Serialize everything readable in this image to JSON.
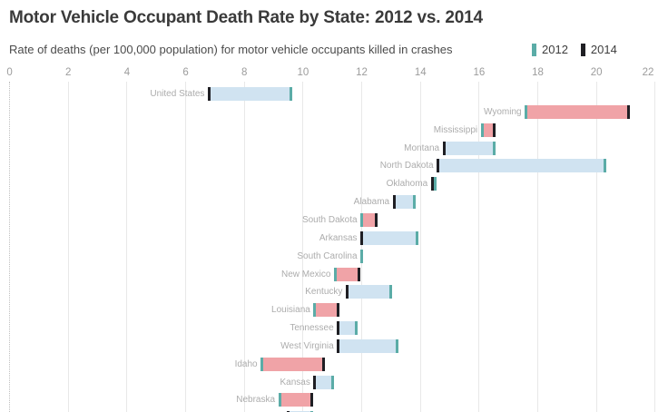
{
  "header": {
    "title": "Motor Vehicle Occupant Death Rate by State: 2012 vs. 2014",
    "subtitle": "Rate of deaths (per 100,000 population) for motor vehicle occupants killed in crashes"
  },
  "legend": {
    "items": [
      {
        "label": "2012",
        "color": "#5baca7"
      },
      {
        "label": "2014",
        "color": "#1f1f24"
      }
    ]
  },
  "chart_data": {
    "type": "bar",
    "subtype": "horizontal-range-dumbbell",
    "title": "Motor Vehicle Occupant Death Rate by State: 2012 vs. 2014",
    "subtitle": "Rate of deaths (per 100,000 population) for motor vehicle occupants killed in crashes",
    "xlabel": "",
    "ylabel": "",
    "x_axis": {
      "min": 0,
      "max": 22,
      "tick_step": 2,
      "ticks": [
        0,
        2,
        4,
        6,
        8,
        10,
        12,
        14,
        16,
        18,
        20,
        22
      ],
      "grid": true,
      "zero_line_style": "dotted"
    },
    "series_names": [
      "2012",
      "2014"
    ],
    "legend_position": "top-right",
    "colors": {
      "increase_fill": "#f0a3a7",
      "decrease_fill": "#d0e3f1",
      "tick_2012": "#5baca7",
      "tick_2014": "#1f1f24"
    },
    "rows": [
      {
        "state": "United States",
        "y2012": 9.6,
        "y2014": 6.8
      },
      {
        "state": "Wyoming",
        "y2012": 17.6,
        "y2014": 21.1
      },
      {
        "state": "Mississippi",
        "y2012": 16.1,
        "y2014": 16.5
      },
      {
        "state": "Montana",
        "y2012": 16.5,
        "y2014": 14.8
      },
      {
        "state": "North Dakota",
        "y2012": 20.3,
        "y2014": 14.6
      },
      {
        "state": "Oklahoma",
        "y2012": 14.5,
        "y2014": 14.4
      },
      {
        "state": "Alabama",
        "y2012": 13.8,
        "y2014": 13.1
      },
      {
        "state": "South Dakota",
        "y2012": 12.0,
        "y2014": 12.5
      },
      {
        "state": "Arkansas",
        "y2012": 13.9,
        "y2014": 12.0
      },
      {
        "state": "South Carolina",
        "y2012": 12.0,
        "y2014": 12.0
      },
      {
        "state": "New Mexico",
        "y2012": 11.1,
        "y2014": 11.9
      },
      {
        "state": "Kentucky",
        "y2012": 13.0,
        "y2014": 11.5
      },
      {
        "state": "Louisiana",
        "y2012": 10.4,
        "y2014": 11.2
      },
      {
        "state": "Tennessee",
        "y2012": 11.8,
        "y2014": 11.2
      },
      {
        "state": "West Virginia",
        "y2012": 13.2,
        "y2014": 11.2
      },
      {
        "state": "Idaho",
        "y2012": 8.6,
        "y2014": 10.7
      },
      {
        "state": "Kansas",
        "y2012": 11.0,
        "y2014": 10.4
      },
      {
        "state": "Nebraska",
        "y2012": 9.2,
        "y2014": 10.3
      },
      {
        "state": "",
        "y2012": 10.3,
        "y2014": 9.5
      }
    ]
  }
}
